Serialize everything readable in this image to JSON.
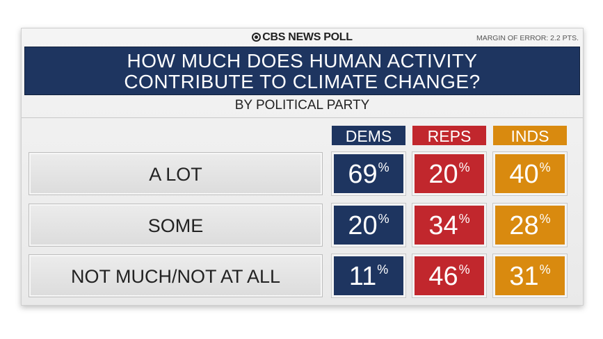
{
  "brand": "CBS NEWS POLL",
  "margin_of_error": "MARGIN OF ERROR: 2.2 PTS.",
  "title_line1": "HOW MUCH DOES HUMAN ACTIVITY",
  "title_line2": "CONTRIBUTE TO CLIMATE CHANGE?",
  "subtitle": "BY POLITICAL PARTY",
  "colors": {
    "dems": "#1e3560",
    "reps": "#c1272d",
    "inds": "#d98a0f"
  },
  "chart_data": {
    "type": "table",
    "title": "HOW MUCH DOES HUMAN ACTIVITY CONTRIBUTE TO CLIMATE CHANGE?",
    "subtitle": "BY POLITICAL PARTY",
    "columns": [
      "DEMS",
      "REPS",
      "INDS"
    ],
    "rows": [
      {
        "label": "A LOT",
        "values": [
          69,
          20,
          40
        ]
      },
      {
        "label": "SOME",
        "values": [
          20,
          34,
          28
        ]
      },
      {
        "label": "NOT MUCH/NOT AT ALL",
        "values": [
          11,
          46,
          31
        ]
      }
    ],
    "unit": "%"
  }
}
